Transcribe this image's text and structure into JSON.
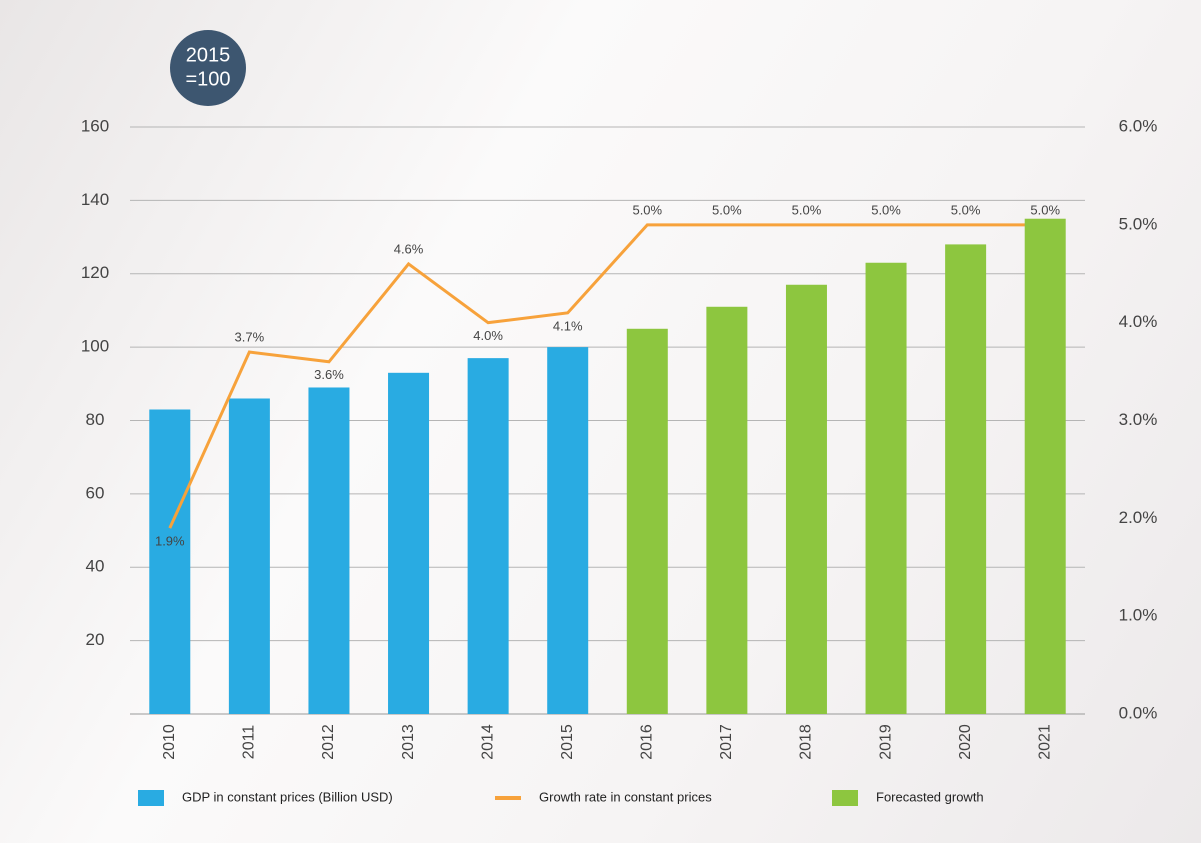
{
  "chart_data": {
    "type": "bar",
    "annotation": [
      "2015",
      "=100"
    ],
    "categories": [
      "2010",
      "2011",
      "2012",
      "2013",
      "2014",
      "2015",
      "2016",
      "2017",
      "2018",
      "2019",
      "2020",
      "2021"
    ],
    "series": [
      {
        "name": "GDP in constant prices (Billion USD)",
        "color": "#29abe2",
        "type": "bar",
        "values": [
          83,
          86,
          89,
          93,
          97,
          100,
          null,
          null,
          null,
          null,
          null,
          null
        ]
      },
      {
        "name": "Growth rate in constant prices",
        "color": "#f7a23b",
        "type": "line",
        "axis": "y2",
        "values": [
          1.9,
          3.7,
          3.6,
          4.6,
          4.0,
          4.1,
          5.0,
          5.0,
          5.0,
          5.0,
          5.0,
          5.0
        ],
        "value_labels": [
          "1.9%",
          "3.7%",
          "3.6%",
          "4.6%",
          "4.0%",
          "4.1%",
          "5.0%",
          "5.0%",
          "5.0%",
          "5.0%",
          "5.0%",
          "5.0%"
        ]
      },
      {
        "name": "Forecasted growth",
        "color": "#8dc63f",
        "type": "bar",
        "values": [
          null,
          null,
          null,
          null,
          null,
          null,
          105,
          111,
          117,
          123,
          128,
          135
        ]
      }
    ],
    "ylim": [
      0,
      160
    ],
    "yticks": [
      20,
      40,
      60,
      80,
      100,
      120,
      140,
      160
    ],
    "y2lim": [
      0,
      6
    ],
    "y2ticks": [
      {
        "value": 0,
        "label": "0.0%"
      },
      {
        "value": 1,
        "label": "1.0%"
      },
      {
        "value": 2,
        "label": "2.0%"
      },
      {
        "value": 3,
        "label": "3.0%"
      },
      {
        "value": 4,
        "label": "4.0%"
      },
      {
        "value": 5,
        "label": "5.0%"
      },
      {
        "value": 6,
        "label": "6.0%"
      }
    ],
    "grid": true
  }
}
